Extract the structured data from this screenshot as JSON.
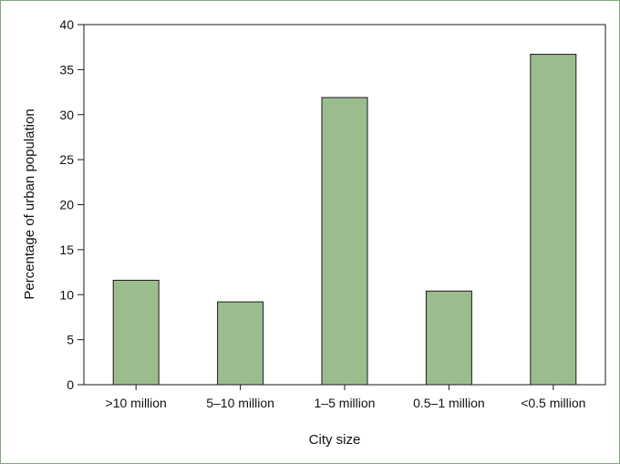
{
  "chart_data": {
    "type": "bar",
    "title": "",
    "xlabel": "City size",
    "ylabel": "Percentage of urban population",
    "categories": [
      ">10 million",
      "5–10 million",
      "1–5 million",
      "0.5–1 million",
      "<0.5 million"
    ],
    "values": [
      11.6,
      9.2,
      31.9,
      10.4,
      36.7
    ],
    "ylim": [
      0,
      40
    ],
    "yticks": [
      0,
      5,
      10,
      15,
      20,
      25,
      30,
      35,
      40
    ],
    "grid": false,
    "legend": "none",
    "colors": {
      "bar_fill": "#9bbd8e",
      "bar_stroke": "#1a1a1a",
      "axis": "#1a1a1a",
      "frame": "#7fa97a"
    }
  }
}
